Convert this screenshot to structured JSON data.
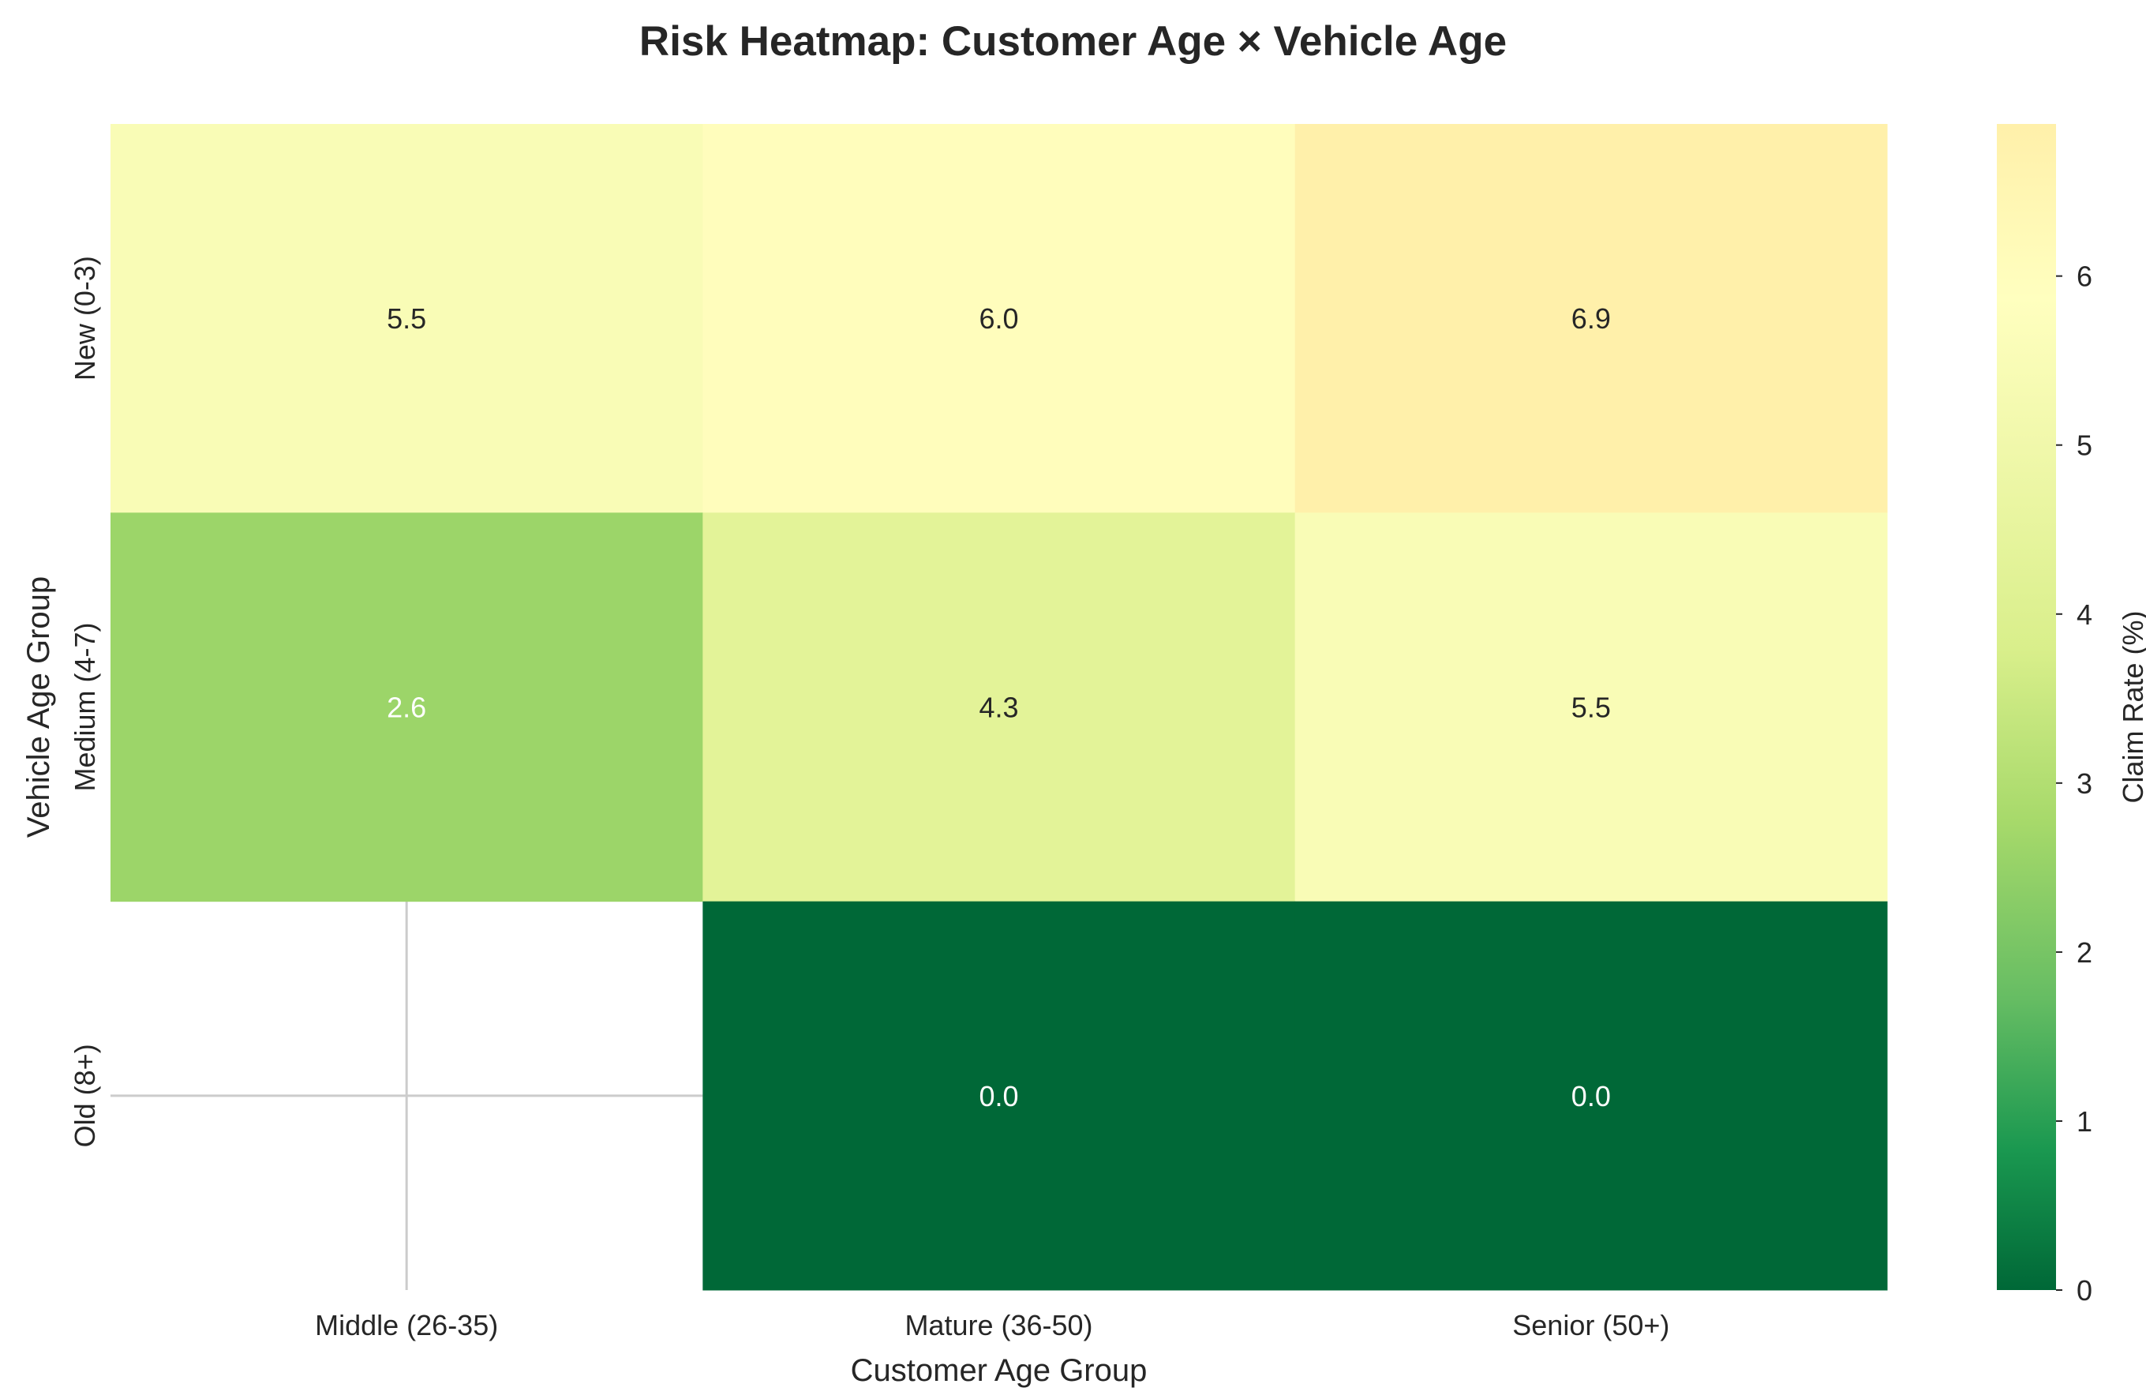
{
  "chart_data": {
    "type": "heatmap",
    "title": "Risk Heatmap: Customer Age × Vehicle Age",
    "xlabel": "Customer Age Group",
    "ylabel": "Vehicle Age Group",
    "x_categories": [
      "Middle (26-35)",
      "Mature (36-50)",
      "Senior (50+)"
    ],
    "y_categories": [
      "New (0-3)",
      "Medium (4-7)",
      "Old (8+)"
    ],
    "values": [
      [
        5.5,
        6.0,
        6.9
      ],
      [
        2.6,
        4.3,
        5.5
      ],
      [
        null,
        0.0,
        0.0
      ]
    ],
    "annotations": [
      [
        "5.5",
        "6.0",
        "6.9"
      ],
      [
        "2.6",
        "4.3",
        "5.5"
      ],
      [
        "",
        "0.0",
        "0.0"
      ]
    ],
    "colorbar": {
      "label": "Claim Rate (%)",
      "ticks": [
        "0",
        "1",
        "2",
        "3",
        "4",
        "5",
        "6"
      ],
      "range": [
        0,
        6.9
      ],
      "colormap": "YlGn reversed (green low, yellow high)"
    },
    "missing_cell_style": "blank with light grid lines",
    "grid": true
  }
}
